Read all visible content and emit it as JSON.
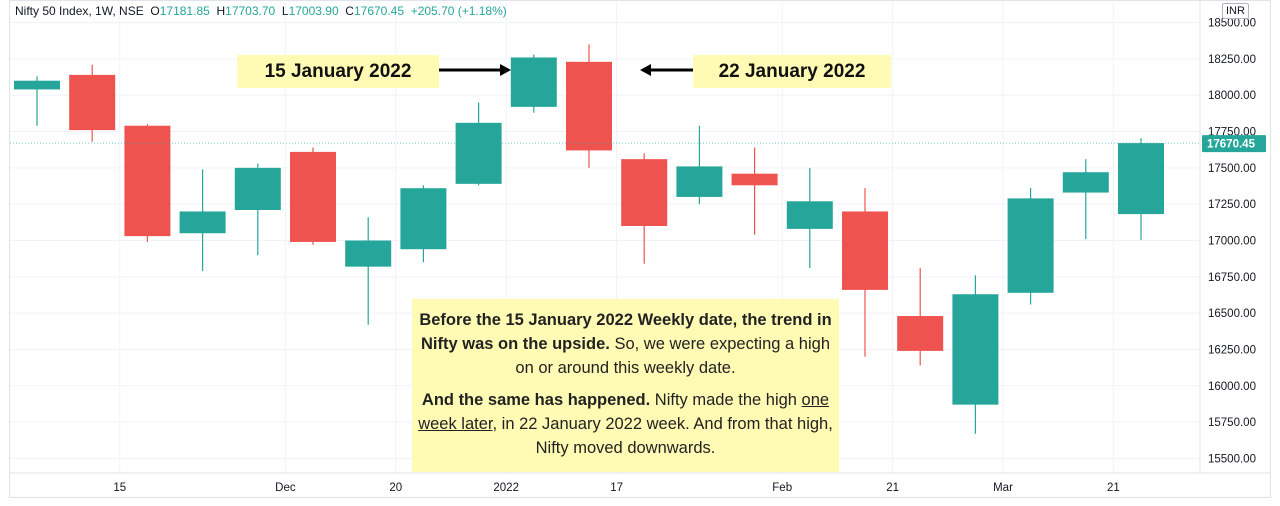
{
  "header": {
    "symbol_line": "Nifty 50 Index, 1W, NSE",
    "o_label": "O",
    "o_value": "17181.85",
    "h_label": "H",
    "h_value": "17703.70",
    "l_label": "L",
    "l_value": "17003.90",
    "c_label": "C",
    "c_value": "17670.45",
    "change": "+205.70 (+1.18%)"
  },
  "currency": "INR",
  "last_price": "17670.45",
  "annotations": {
    "left_callout": "15 January 2022",
    "right_callout": "22 January 2022"
  },
  "note": {
    "p1_bold": "Before the 15 January 2022 Weekly date, the trend in Nifty was on the upside.",
    "p1_rest": " So, we were expecting a high on or around this weekly date.",
    "p2_bold": "And the same has happened.",
    "p2_a": " Nifty made the high ",
    "p2_underline": "one week later",
    "p2_b": ", in 22 January 2022 week. And from that high, Nifty moved downwards."
  },
  "colors": {
    "up": "#26a69a",
    "down": "#ef5350",
    "callout_bg": "#fffbb4",
    "grid": "#f0f3fa"
  },
  "chart_data": {
    "type": "candlestick",
    "ylim": [
      15450,
      18550
    ],
    "y_ticks": [
      "15500.00",
      "15750.00",
      "16000.00",
      "16250.00",
      "16500.00",
      "16750.00",
      "17000.00",
      "17250.00",
      "17500.00",
      "17750.00",
      "18000.00",
      "18250.00",
      "18500.00"
    ],
    "x_tick_labels": [
      "15",
      "Dec",
      "20",
      "2022",
      "17",
      "Feb",
      "21",
      "Mar",
      "21"
    ],
    "x_tick_candle_index": [
      1.5,
      4.5,
      6.5,
      8.5,
      10.5,
      13.5,
      15.5,
      17.5,
      19.5
    ],
    "candles": [
      {
        "o": 18040,
        "h": 18130,
        "l": 17790,
        "c": 18100
      },
      {
        "o": 18140,
        "h": 18210,
        "l": 17680,
        "c": 17760
      },
      {
        "o": 17790,
        "h": 17800,
        "l": 16990,
        "c": 17030
      },
      {
        "o": 17050,
        "h": 17490,
        "l": 16790,
        "c": 17200
      },
      {
        "o": 17210,
        "h": 17530,
        "l": 16900,
        "c": 17500
      },
      {
        "o": 17610,
        "h": 17640,
        "l": 16970,
        "c": 16990
      },
      {
        "o": 16820,
        "h": 17160,
        "l": 16420,
        "c": 17000
      },
      {
        "o": 16940,
        "h": 17380,
        "l": 16850,
        "c": 17360
      },
      {
        "o": 17390,
        "h": 17950,
        "l": 17380,
        "c": 17810
      },
      {
        "o": 17920,
        "h": 18280,
        "l": 17880,
        "c": 18260
      },
      {
        "o": 18230,
        "h": 18350,
        "l": 17500,
        "c": 17620
      },
      {
        "o": 17560,
        "h": 17600,
        "l": 16840,
        "c": 17100
      },
      {
        "o": 17300,
        "h": 17790,
        "l": 17250,
        "c": 17510
      },
      {
        "o": 17460,
        "h": 17640,
        "l": 17040,
        "c": 17380
      },
      {
        "o": 17080,
        "h": 17500,
        "l": 16810,
        "c": 17270
      },
      {
        "o": 17200,
        "h": 17360,
        "l": 16200,
        "c": 16660
      },
      {
        "o": 16480,
        "h": 16810,
        "l": 16140,
        "c": 16240
      },
      {
        "o": 15870,
        "h": 16760,
        "l": 15670,
        "c": 16630
      },
      {
        "o": 16640,
        "h": 17360,
        "l": 16560,
        "c": 17290
      },
      {
        "o": 17330,
        "h": 17560,
        "l": 17010,
        "c": 17470
      },
      {
        "o": 17181.85,
        "h": 17703.7,
        "l": 17003.9,
        "c": 17670.45
      }
    ]
  }
}
